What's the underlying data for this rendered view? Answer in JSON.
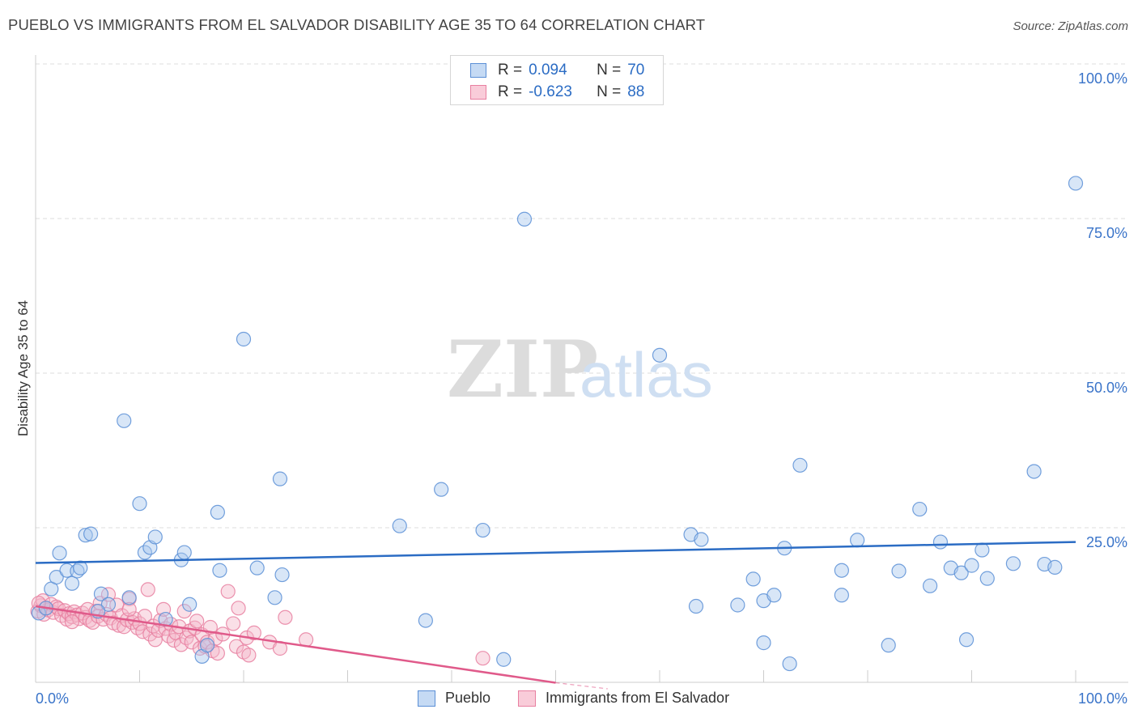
{
  "title": "PUEBLO VS IMMIGRANTS FROM EL SALVADOR DISABILITY AGE 35 TO 64 CORRELATION CHART",
  "source": "Source: ZipAtlas.com",
  "watermark": {
    "zip": "ZIP",
    "atlas": "atlas"
  },
  "colors": {
    "blue_fill": "#a9c8ee",
    "blue_stroke": "#5b8fd6",
    "blue_line": "#2b6cc4",
    "pink_fill": "#f5b8ca",
    "pink_stroke": "#e87fa0",
    "pink_line": "#e05a8a",
    "axis_text": "#3a74c9",
    "grid": "#dedede"
  },
  "legend_top": [
    {
      "r_label": "R =",
      "r_value": "0.094",
      "n_label": "N =",
      "n_value": "70"
    },
    {
      "r_label": "R =",
      "r_value": "-0.623",
      "n_label": "N =",
      "n_value": "88"
    }
  ],
  "legend_bottom": [
    {
      "label": "Pueblo"
    },
    {
      "label": "Immigrants from El Salvador"
    }
  ],
  "chart_data": {
    "type": "scatter",
    "title": "PUEBLO VS IMMIGRANTS FROM EL SALVADOR DISABILITY AGE 35 TO 64 CORRELATION CHART",
    "xlabel": "",
    "ylabel": "Disability Age 35 to 64",
    "xlim": [
      0,
      100
    ],
    "ylim": [
      0,
      100
    ],
    "x_tick_labels": [
      "0.0%",
      "100.0%"
    ],
    "y_ticks": [
      25,
      50,
      75,
      100
    ],
    "y_tick_labels": [
      "25.0%",
      "50.0%",
      "75.0%",
      "100.0%"
    ],
    "grid": true,
    "series": [
      {
        "name": "Pueblo",
        "r": 0.094,
        "n": 70,
        "trend": {
          "x": [
            0,
            100
          ],
          "y": [
            19.3,
            22.7
          ],
          "dashed_from": null
        },
        "points": [
          [
            0.3,
            11.2
          ],
          [
            1.5,
            15.1
          ],
          [
            2.0,
            17.0
          ],
          [
            2.3,
            20.9
          ],
          [
            3.0,
            18.1
          ],
          [
            3.5,
            16.0
          ],
          [
            4.0,
            18.0
          ],
          [
            4.3,
            18.5
          ],
          [
            4.8,
            23.8
          ],
          [
            5.3,
            24.0
          ],
          [
            6.3,
            14.3
          ],
          [
            7.0,
            12.6
          ],
          [
            9.0,
            13.7
          ],
          [
            8.5,
            42.3
          ],
          [
            10.0,
            28.9
          ],
          [
            10.5,
            21.0
          ],
          [
            11.0,
            21.8
          ],
          [
            11.5,
            23.5
          ],
          [
            12.5,
            10.2
          ],
          [
            14.0,
            19.8
          ],
          [
            14.3,
            21.0
          ],
          [
            14.8,
            12.6
          ],
          [
            16.0,
            4.2
          ],
          [
            16.5,
            6.0
          ],
          [
            17.5,
            27.5
          ],
          [
            17.7,
            18.1
          ],
          [
            20.0,
            55.5
          ],
          [
            21.3,
            18.5
          ],
          [
            23.0,
            13.7
          ],
          [
            23.7,
            17.4
          ],
          [
            23.5,
            32.9
          ],
          [
            35.0,
            25.3
          ],
          [
            37.5,
            10.0
          ],
          [
            39.0,
            31.2
          ],
          [
            43.0,
            24.6
          ],
          [
            45.0,
            3.7
          ],
          [
            47.0,
            74.9
          ],
          [
            60.0,
            52.9
          ],
          [
            63.0,
            23.9
          ],
          [
            63.5,
            12.3
          ],
          [
            64.0,
            23.1
          ],
          [
            67.5,
            12.5
          ],
          [
            69.0,
            16.7
          ],
          [
            70.0,
            6.4
          ],
          [
            70.0,
            13.2
          ],
          [
            71.0,
            14.1
          ],
          [
            72.0,
            21.7
          ],
          [
            72.5,
            3.0
          ],
          [
            73.5,
            35.1
          ],
          [
            77.5,
            14.1
          ],
          [
            77.5,
            18.1
          ],
          [
            79.0,
            23.0
          ],
          [
            82.0,
            6.0
          ],
          [
            83.0,
            18.0
          ],
          [
            85.0,
            28.0
          ],
          [
            86.0,
            15.6
          ],
          [
            87.0,
            22.7
          ],
          [
            88.0,
            18.5
          ],
          [
            89.0,
            17.7
          ],
          [
            89.5,
            6.9
          ],
          [
            90.0,
            18.9
          ],
          [
            91.0,
            21.4
          ],
          [
            91.5,
            16.8
          ],
          [
            94.0,
            19.2
          ],
          [
            96.0,
            34.1
          ],
          [
            97.0,
            19.1
          ],
          [
            98.0,
            18.6
          ],
          [
            100.0,
            80.7
          ],
          [
            1.0,
            12.0
          ],
          [
            6.0,
            11.5
          ]
        ]
      },
      {
        "name": "Immigrants from El Salvador",
        "r": -0.623,
        "n": 88,
        "trend": {
          "x": [
            0,
            55
          ],
          "y": [
            12.3,
            -1.3
          ],
          "dashed_from": 50
        },
        "points": [
          [
            0.2,
            11.5
          ],
          [
            0.5,
            12.4
          ],
          [
            0.7,
            13.2
          ],
          [
            0.8,
            11.0
          ],
          [
            1.0,
            12.0
          ],
          [
            1.2,
            11.7
          ],
          [
            1.5,
            12.6
          ],
          [
            1.7,
            11.3
          ],
          [
            2.0,
            12.2
          ],
          [
            2.2,
            11.9
          ],
          [
            2.5,
            10.8
          ],
          [
            2.8,
            11.6
          ],
          [
            3.0,
            10.2
          ],
          [
            3.2,
            11.1
          ],
          [
            3.5,
            10.6
          ],
          [
            3.7,
            11.4
          ],
          [
            4.0,
            10.9
          ],
          [
            4.2,
            10.3
          ],
          [
            4.5,
            11.2
          ],
          [
            4.8,
            10.5
          ],
          [
            5.0,
            11.8
          ],
          [
            5.2,
            10.0
          ],
          [
            5.5,
            9.7
          ],
          [
            5.8,
            11.5
          ],
          [
            6.0,
            10.7
          ],
          [
            6.2,
            12.8
          ],
          [
            6.5,
            10.2
          ],
          [
            6.8,
            11.0
          ],
          [
            7.0,
            14.2
          ],
          [
            7.2,
            10.4
          ],
          [
            7.5,
            9.6
          ],
          [
            7.8,
            12.5
          ],
          [
            8.0,
            9.2
          ],
          [
            8.3,
            10.8
          ],
          [
            8.5,
            9.0
          ],
          [
            8.8,
            10.1
          ],
          [
            9.0,
            13.5
          ],
          [
            9.3,
            9.7
          ],
          [
            9.5,
            10.3
          ],
          [
            9.8,
            8.8
          ],
          [
            10.0,
            9.5
          ],
          [
            10.3,
            8.2
          ],
          [
            10.5,
            10.7
          ],
          [
            10.8,
            15.0
          ],
          [
            11.0,
            7.8
          ],
          [
            11.3,
            9.1
          ],
          [
            11.5,
            6.9
          ],
          [
            11.8,
            8.4
          ],
          [
            12.0,
            10.0
          ],
          [
            12.3,
            11.8
          ],
          [
            12.5,
            8.7
          ],
          [
            12.8,
            7.5
          ],
          [
            13.0,
            9.4
          ],
          [
            13.3,
            6.8
          ],
          [
            13.5,
            8.0
          ],
          [
            13.8,
            9.0
          ],
          [
            14.0,
            6.1
          ],
          [
            14.3,
            11.5
          ],
          [
            14.5,
            7.2
          ],
          [
            14.8,
            8.3
          ],
          [
            15.0,
            6.5
          ],
          [
            15.3,
            8.8
          ],
          [
            15.5,
            9.9
          ],
          [
            15.8,
            5.5
          ],
          [
            16.0,
            7.7
          ],
          [
            16.3,
            5.8
          ],
          [
            16.5,
            6.5
          ],
          [
            16.8,
            8.9
          ],
          [
            17.0,
            5.1
          ],
          [
            17.3,
            7.1
          ],
          [
            17.5,
            4.7
          ],
          [
            18.0,
            7.8
          ],
          [
            18.5,
            14.7
          ],
          [
            19.0,
            9.5
          ],
          [
            19.3,
            5.8
          ],
          [
            19.5,
            12.0
          ],
          [
            20.0,
            4.9
          ],
          [
            20.3,
            7.2
          ],
          [
            20.5,
            4.4
          ],
          [
            21.0,
            8.0
          ],
          [
            22.5,
            6.5
          ],
          [
            23.5,
            5.5
          ],
          [
            24.0,
            10.5
          ],
          [
            26.0,
            6.9
          ],
          [
            43.0,
            3.9
          ],
          [
            3.5,
            9.8
          ],
          [
            9.0,
            11.8
          ],
          [
            0.3,
            12.8
          ]
        ]
      }
    ]
  }
}
